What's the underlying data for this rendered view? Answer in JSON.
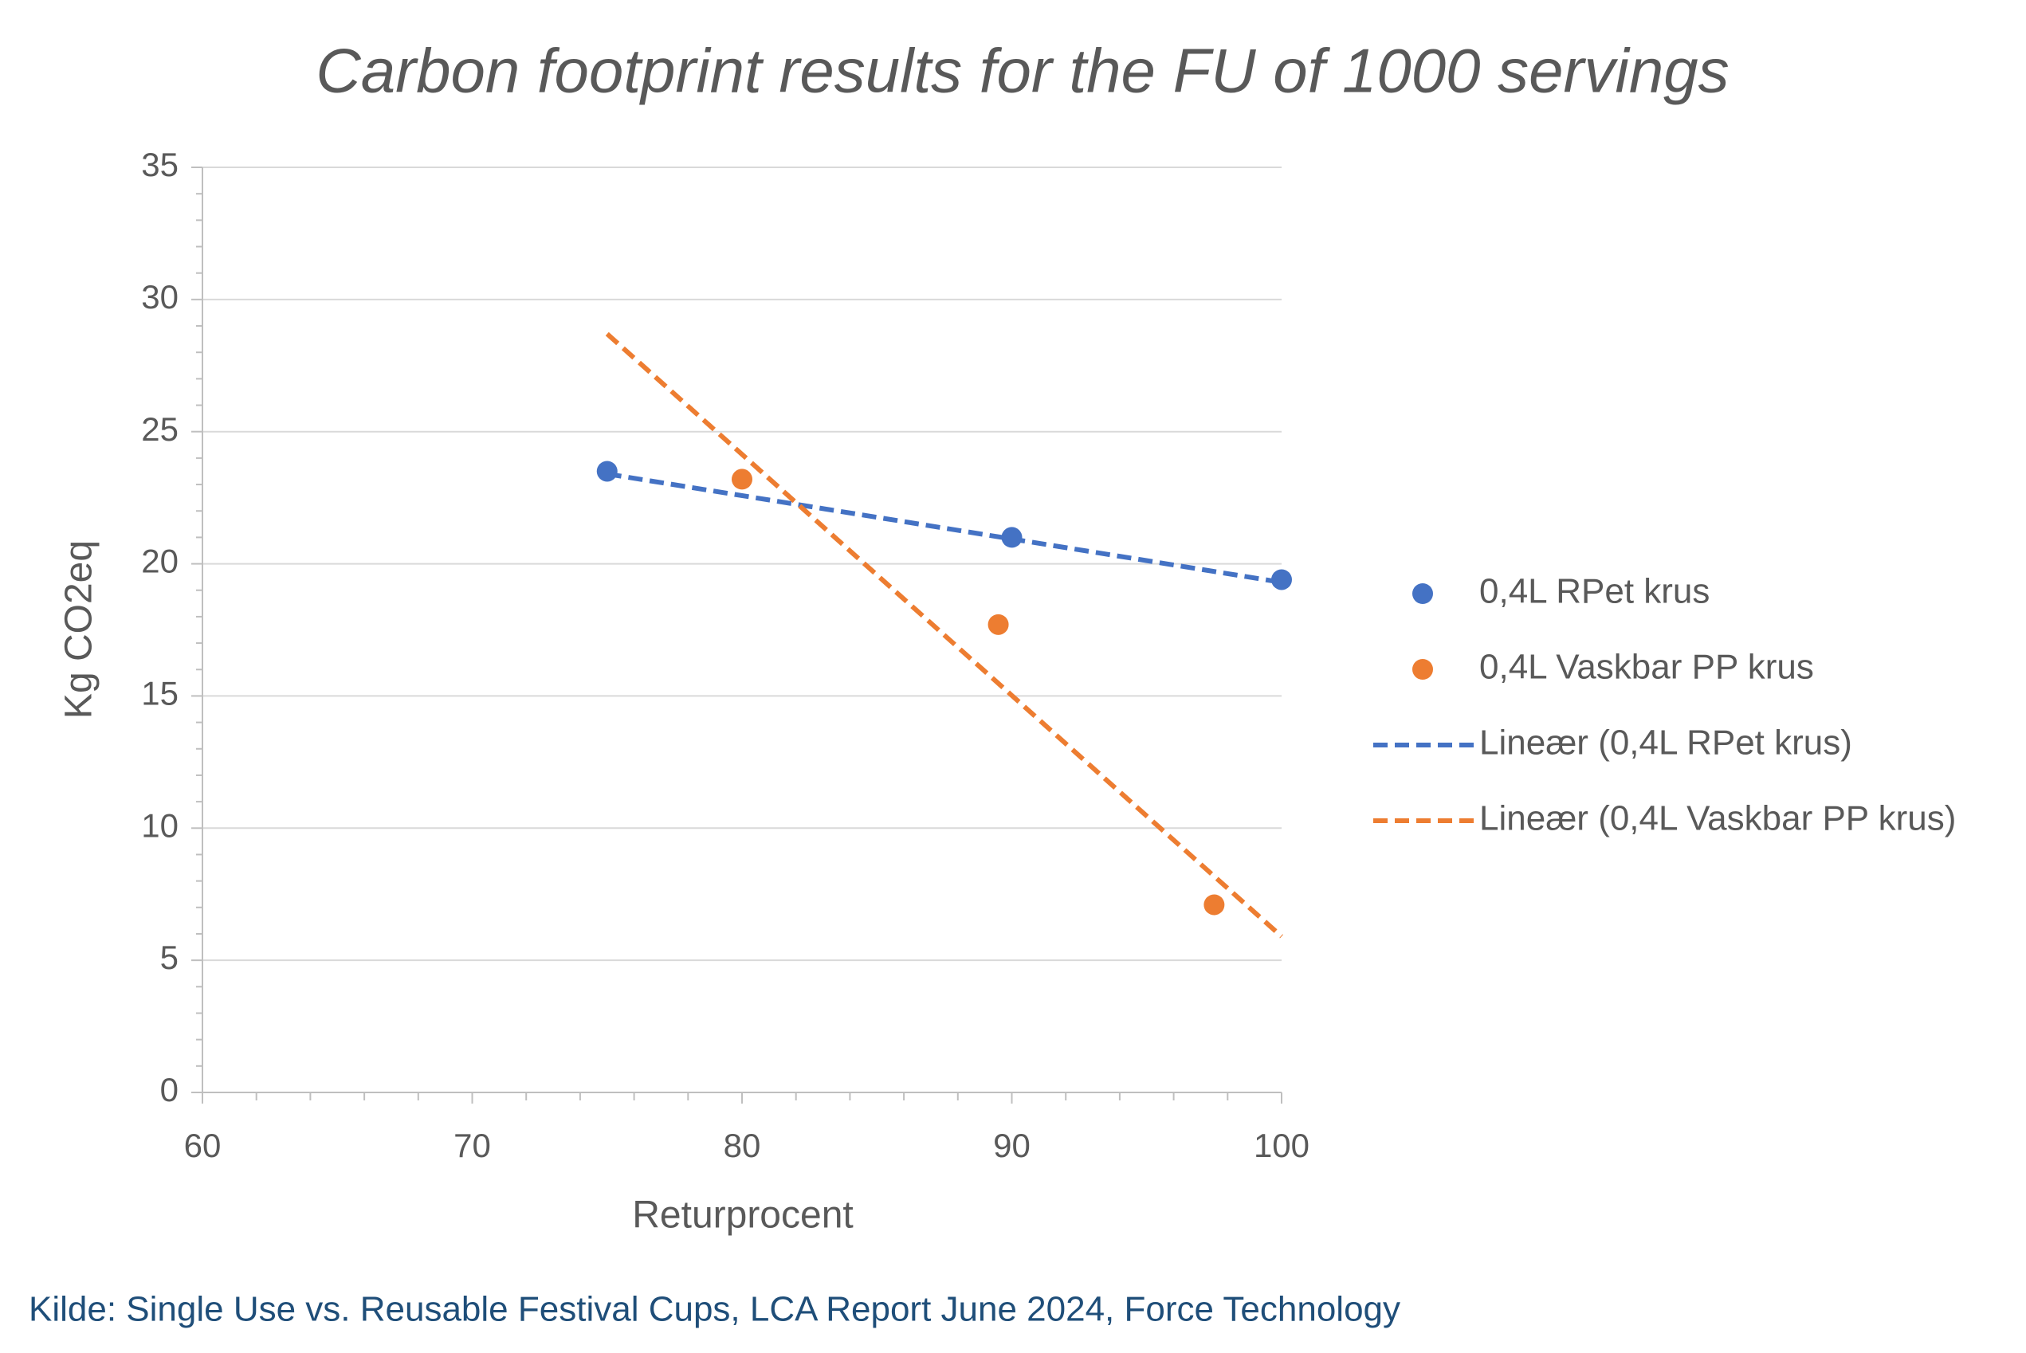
{
  "chart_data": {
    "type": "scatter",
    "title": "Carbon footprint results for the FU of 1000 servings",
    "xlabel": "Returprocent",
    "ylabel": "Kg CO2eq",
    "source": "Kilde: Single Use vs. Reusable Festival Cups, LCA Report June 2024, Force Technology",
    "xlim": [
      60,
      100
    ],
    "ylim": [
      0,
      35
    ],
    "xticks": [
      60,
      70,
      80,
      90,
      100
    ],
    "yticks": [
      0,
      5,
      10,
      15,
      20,
      25,
      30,
      35
    ],
    "grid": true,
    "legend": "right",
    "series": [
      {
        "name": "0,4L RPet krus",
        "color": "#4472c4",
        "mode": "markers",
        "x": [
          75,
          90,
          100
        ],
        "values": [
          23.5,
          21.0,
          19.4
        ]
      },
      {
        "name": "0,4L Vaskbar PP krus",
        "color": "#ed7d31",
        "mode": "markers",
        "x": [
          80,
          89.5,
          97.5
        ],
        "values": [
          23.2,
          17.7,
          7.1
        ]
      },
      {
        "name": "Lineær (0,4L RPet krus)",
        "color": "#4472c4",
        "mode": "dashed-line",
        "x": [
          75,
          100
        ],
        "values": [
          23.4,
          19.3
        ]
      },
      {
        "name": "Lineær (0,4L Vaskbar PP krus)",
        "color": "#ed7d31",
        "mode": "dashed-line",
        "x": [
          75,
          100
        ],
        "values": [
          28.7,
          5.9
        ]
      }
    ]
  }
}
